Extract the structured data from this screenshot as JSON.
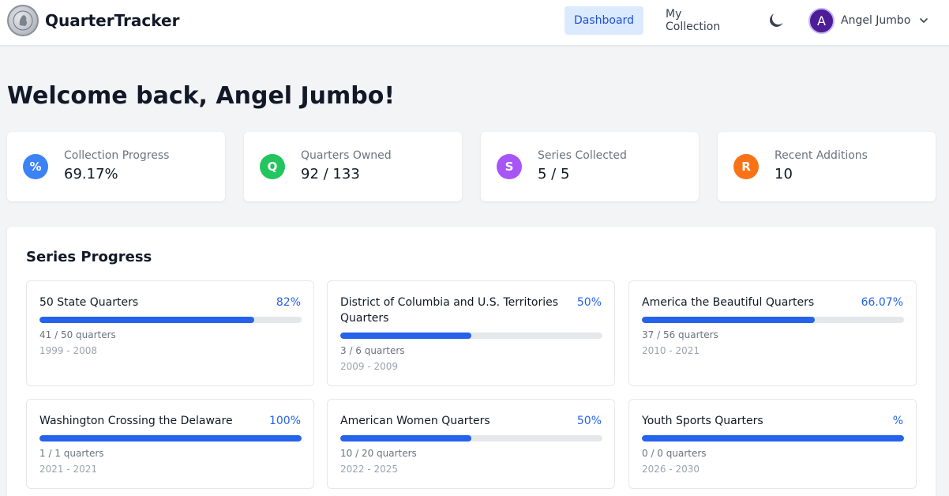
{
  "app": {
    "title": "QuarterTracker",
    "logo_icon": "quarter-coin-icon"
  },
  "nav": {
    "dashboard_label": "Dashboard",
    "collection_label": "My Collection",
    "theme_icon": "moon-icon",
    "user_initial": "A",
    "user_name": "Angel Jumbo",
    "dropdown_icon": "chevron-down-icon"
  },
  "welcome": "Welcome back, Angel Jumbo!",
  "stats": [
    {
      "icon": "%",
      "label": "Collection Progress",
      "value": "69.17%",
      "color": "#3b82f6"
    },
    {
      "icon": "Q",
      "label": "Quarters Owned",
      "value": "92 / 133",
      "color": "#22c55e"
    },
    {
      "icon": "S",
      "label": "Series Collected",
      "value": "5 / 5",
      "color": "#a855f7"
    },
    {
      "icon": "R",
      "label": "Recent Additions",
      "value": "10",
      "color": "#f97316"
    }
  ],
  "series_progress": {
    "title": "Series Progress",
    "series": [
      {
        "name": "50 State Quarters",
        "percent_label": "82%",
        "progress": 0.82,
        "count": "41 / 50 quarters",
        "years": "1999 - 2008"
      },
      {
        "name": "District of Columbia and U.S. Territories Quarters",
        "percent_label": "50%",
        "progress": 0.5,
        "count": "3 / 6 quarters",
        "years": "2009 - 2009"
      },
      {
        "name": "America the Beautiful Quarters",
        "percent_label": "66.07%",
        "progress": 0.6607,
        "count": "37 / 56 quarters",
        "years": "2010 - 2021"
      },
      {
        "name": "Washington Crossing the Delaware",
        "percent_label": "100%",
        "progress": 1.0,
        "count": "1 / 1 quarters",
        "years": "2021 - 2021"
      },
      {
        "name": "American Women Quarters",
        "percent_label": "50%",
        "progress": 0.5,
        "count": "10 / 20 quarters",
        "years": "2022 - 2025"
      },
      {
        "name": "Youth Sports Quarters",
        "percent_label": "%",
        "progress": 1.0,
        "count": "0 / 0 quarters",
        "years": "2026 - 2030"
      }
    ]
  },
  "colors": {
    "accent": "#2563eb",
    "nav_active_bg": "#dbeafe",
    "avatar": "#4c1d95",
    "background": "#f3f4f6"
  }
}
